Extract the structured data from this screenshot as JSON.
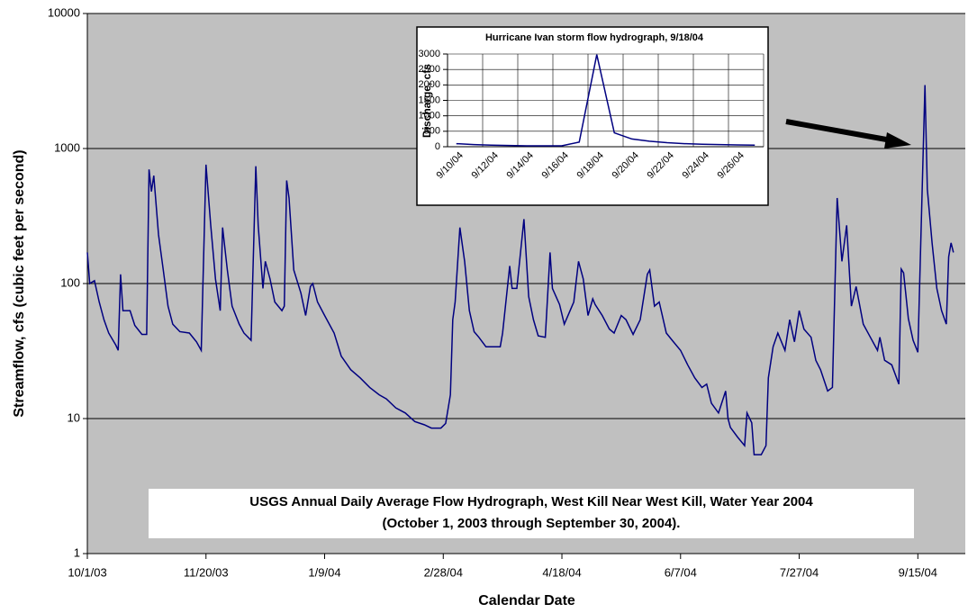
{
  "chart_data": [
    {
      "type": "line",
      "y_label": "Streamflow, cfs (cubic feet per second)",
      "x_label": "Calendar Date",
      "annotations": [
        "USGS Annual Daily Average Flow Hydrograph, West Kill Near West Kill, Water Year 2004",
        "(October 1, 2003 through September 30, 2004)."
      ],
      "yscale": "log",
      "ylim": [
        1,
        10000
      ],
      "yticks": [
        1,
        10,
        100,
        1000,
        10000
      ],
      "grid": true,
      "xlim": [
        "10/1/03",
        "10/5/04"
      ],
      "xticks": [
        "10/1/03",
        "11/20/03",
        "1/9/04",
        "2/28/04",
        "4/18/04",
        "6/7/04",
        "7/27/04",
        "9/15/04"
      ],
      "x": [
        "10/1/03",
        "10/2/03",
        "10/4/03",
        "10/6/03",
        "10/8/03",
        "10/10/03",
        "10/13/03",
        "10/14/03",
        "10/15/03",
        "10/16/03",
        "10/19/03",
        "10/21/03",
        "10/24/03",
        "10/26/03",
        "10/27/03",
        "10/28/03",
        "10/29/03",
        "10/31/03",
        "11/2/03",
        "11/4/03",
        "11/6/03",
        "11/9/03",
        "11/13/03",
        "11/16/03",
        "11/18/03",
        "11/20/03",
        "11/22/03",
        "11/24/03",
        "11/26/03",
        "11/27/03",
        "11/29/03",
        "12/1/03",
        "12/4/03",
        "12/6/03",
        "12/9/03",
        "12/11/03",
        "12/12/03",
        "12/14/03",
        "12/15/03",
        "12/17/03",
        "12/19/03",
        "12/22/03",
        "12/23/03",
        "12/24/03",
        "12/25/03",
        "12/27/03",
        "12/30/03",
        "1/1/04",
        "1/3/04",
        "1/4/04",
        "1/6/04",
        "1/9/04",
        "1/13/04",
        "1/16/04",
        "1/20/04",
        "1/24/04",
        "1/28/04",
        "2/1/04",
        "2/4/04",
        "2/8/04",
        "2/12/04",
        "2/16/04",
        "2/20/04",
        "2/23/04",
        "2/27/04",
        "2/29/04",
        "3/2/04",
        "3/3/04",
        "3/4/04",
        "3/6/04",
        "3/8/04",
        "3/10/04",
        "3/12/04",
        "3/14/04",
        "3/17/04",
        "3/23/04",
        "3/24/04",
        "3/27/04",
        "3/28/04",
        "3/30/04",
        "4/2/04",
        "4/4/04",
        "4/6/04",
        "4/8/04",
        "4/11/04",
        "4/13/04",
        "4/14/04",
        "4/17/04",
        "4/19/04",
        "4/23/04",
        "4/25/04",
        "4/27/04",
        "4/29/04",
        "5/1/04",
        "5/2/04",
        "5/5/04",
        "5/8/04",
        "5/10/04",
        "5/13/04",
        "5/15/04",
        "5/18/04",
        "5/21/04",
        "5/24/04",
        "5/25/04",
        "5/27/04",
        "5/29/04",
        "6/1/04",
        "6/4/04",
        "6/7/04",
        "6/10/04",
        "6/13/04",
        "6/16/04",
        "6/18/04",
        "6/20/04",
        "6/23/04",
        "6/26/04",
        "6/27/04",
        "6/28/04",
        "7/1/04",
        "7/4/04",
        "7/5/04",
        "7/7/04",
        "7/8/04",
        "7/11/04",
        "7/13/04",
        "7/14/04",
        "7/16/04",
        "7/18/04",
        "7/21/04",
        "7/23/04",
        "7/25/04",
        "7/27/04",
        "7/29/04",
        "8/1/04",
        "8/3/04",
        "8/5/04",
        "8/8/04",
        "8/10/04",
        "8/12/04",
        "8/14/04",
        "8/16/04",
        "8/18/04",
        "8/20/04",
        "8/23/04",
        "8/26/04",
        "8/29/04",
        "8/30/04",
        "9/1/04",
        "9/4/04",
        "9/7/04",
        "9/8/04",
        "9/9/04",
        "9/11/04",
        "9/13/04",
        "9/15/04",
        "9/18/04",
        "9/19/04",
        "9/21/04",
        "9/23/04",
        "9/25/04",
        "9/27/04",
        "9/28/04",
        "9/29/04",
        "9/30/04"
      ],
      "series": [
        {
          "name": "Streamflow",
          "color": "#000080",
          "values": [
            170,
            100,
            105,
            73,
            54,
            43,
            35,
            32,
            117,
            63,
            63,
            49,
            42,
            42,
            700,
            480,
            630,
            230,
            126,
            68,
            50,
            44,
            43,
            37,
            32,
            760,
            270,
            108,
            63,
            260,
            126,
            68,
            50,
            43,
            38,
            740,
            270,
            92,
            146,
            108,
            73,
            63,
            68,
            580,
            430,
            126,
            85,
            58,
            95,
            100,
            73,
            58,
            43,
            29,
            23,
            20,
            17,
            15,
            14,
            12,
            11,
            9.5,
            9,
            8.5,
            8.5,
            9.2,
            15,
            54,
            73,
            260,
            146,
            63,
            44,
            40,
            34,
            34,
            43,
            135,
            92,
            92,
            300,
            80,
            54,
            41,
            40,
            170,
            92,
            70,
            50,
            73,
            146,
            108,
            58,
            77,
            70,
            58,
            46,
            43,
            58,
            54,
            42,
            54,
            117,
            126,
            68,
            73,
            43,
            37,
            32,
            25,
            20,
            17,
            18,
            13,
            11,
            16,
            10,
            8.6,
            7.3,
            6.3,
            11,
            9.3,
            5.4,
            5.4,
            6.3,
            20,
            34,
            43,
            32,
            54,
            37,
            63,
            46,
            40,
            27,
            23,
            16,
            17,
            430,
            146,
            270,
            68,
            95,
            50,
            40,
            32,
            40,
            27,
            25,
            18,
            128,
            120,
            55,
            38,
            31,
            2950,
            500,
            200,
            92,
            63,
            50,
            158,
            200,
            170
          ]
        }
      ]
    },
    {
      "type": "line",
      "title": "Hurricane Ivan storm flow hydrograph, 9/18/04",
      "y_label": "Discharge, cfs",
      "categories": [
        "9/10/04",
        null,
        "9/12/04",
        null,
        "9/14/04",
        null,
        "9/16/04",
        null,
        "9/18/04",
        null,
        "9/20/04",
        null,
        "9/22/04",
        null,
        "9/24/04",
        null,
        "9/26/04",
        null
      ],
      "ylim": [
        0,
        3000
      ],
      "yticks": [
        0,
        500,
        1000,
        1500,
        2000,
        2500,
        3000
      ],
      "grid": true,
      "series": [
        {
          "name": "Discharge",
          "color": "#000080",
          "values": [
            100,
            70,
            50,
            40,
            30,
            30,
            30,
            150,
            2980,
            450,
            250,
            180,
            130,
            100,
            80,
            70,
            60,
            50
          ]
        }
      ]
    }
  ]
}
